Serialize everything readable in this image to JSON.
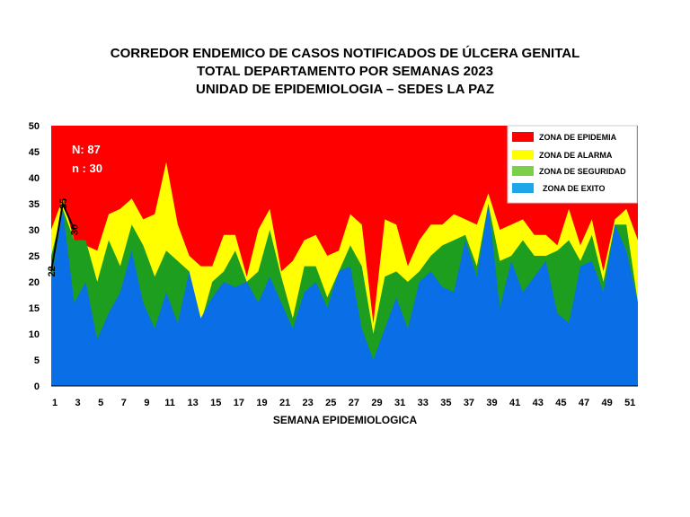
{
  "title": {
    "line1": "CORREDOR  ENDEMICO  DE CASOS NOTIFICADOS  DE ÚLCERA GENITAL",
    "line2": "TOTAL DEPARTAMENTO  POR SEMANAS  2023",
    "line3": "UNIDAD  DE  EPIDEMIOLOGIA  – SEDES LA PAZ"
  },
  "annotations": {
    "N": "N: 87",
    "n": "n : 30"
  },
  "legend": {
    "epidemia": "ZONA DE EPIDEMIA",
    "alarma": "ZONA DE ALARMA",
    "seguridad": "ZONA DE  SEGURIDAD",
    "exito": "ZONA DE  EXITO"
  },
  "colors": {
    "epidemia": "#ff0000",
    "alarma": "#ffff00",
    "seguridad": "#1e9e1e",
    "exito": "#0a6ee6",
    "current_line": "#000000"
  },
  "chart_data": {
    "type": "area",
    "xlabel": "SEMANA EPIDEMIOLOGICA",
    "ylabel": "",
    "ylim": [
      0,
      50
    ],
    "yticks": [
      0,
      5,
      10,
      15,
      20,
      25,
      30,
      35,
      40,
      45,
      50
    ],
    "xticks": [
      1,
      3,
      5,
      7,
      9,
      11,
      13,
      15,
      17,
      19,
      21,
      23,
      25,
      27,
      29,
      31,
      33,
      35,
      37,
      39,
      41,
      43,
      45,
      47,
      49,
      51
    ],
    "x": [
      1,
      2,
      3,
      4,
      5,
      6,
      7,
      8,
      9,
      10,
      11,
      12,
      13,
      14,
      15,
      16,
      17,
      18,
      19,
      20,
      21,
      22,
      23,
      24,
      25,
      26,
      27,
      28,
      29,
      30,
      31,
      32,
      33,
      34,
      35,
      36,
      37,
      38,
      39,
      40,
      41,
      42,
      43,
      44,
      45,
      46,
      47,
      48,
      49,
      50,
      51,
      52
    ],
    "series": [
      {
        "name": "ZONA DE  EXITO",
        "values": [
          20,
          34,
          16,
          20,
          9,
          14,
          18,
          26,
          16,
          11,
          18,
          12,
          22,
          13,
          17,
          20,
          19,
          20,
          16,
          21,
          16,
          11,
          18,
          20,
          15,
          22,
          23,
          11,
          5,
          11,
          17,
          11,
          20,
          22,
          19,
          18,
          28,
          21,
          35,
          15,
          24,
          18,
          21,
          24,
          14,
          12,
          23,
          24,
          18,
          31,
          26,
          16
        ]
      },
      {
        "name": "ZONA DE  SEGURIDAD",
        "values": [
          25,
          34,
          28,
          28,
          20,
          28,
          23,
          31,
          27,
          21,
          26,
          24,
          22,
          12,
          20,
          22,
          26,
          20,
          22,
          30,
          21,
          13,
          23,
          23,
          17,
          22,
          27,
          23,
          10,
          21,
          22,
          20,
          22,
          25,
          27,
          28,
          29,
          23,
          35,
          24,
          25,
          28,
          25,
          25,
          26,
          28,
          24,
          29,
          20,
          31,
          31,
          16
        ]
      },
      {
        "name": "ZONA DE ALARMA",
        "values": [
          30,
          36,
          28,
          27,
          26,
          33,
          34,
          36,
          32,
          33,
          43,
          31,
          25,
          23,
          23,
          29,
          29,
          21,
          30,
          34,
          22,
          24,
          28,
          29,
          25,
          26,
          33,
          31,
          12,
          32,
          31,
          23,
          28,
          31,
          31,
          33,
          32,
          31,
          37,
          30,
          31,
          32,
          29,
          29,
          27,
          34,
          27,
          32,
          22,
          32,
          34,
          28
        ]
      },
      {
        "name": "ZONA DE EPIDEMIA",
        "values": [
          50,
          50,
          50,
          50,
          50,
          50,
          50,
          50,
          50,
          50,
          50,
          50,
          50,
          50,
          50,
          50,
          50,
          50,
          50,
          50,
          50,
          50,
          50,
          50,
          50,
          50,
          50,
          50,
          50,
          50,
          50,
          50,
          50,
          50,
          50,
          50,
          50,
          50,
          50,
          50,
          50,
          50,
          50,
          50,
          50,
          50,
          50,
          50,
          50,
          50,
          50,
          50
        ]
      }
    ],
    "current": {
      "x": [
        1,
        2,
        3
      ],
      "values": [
        22,
        35,
        30
      ],
      "labels": [
        "22",
        "35",
        "30"
      ]
    },
    "legend_position": "top-right",
    "grid": false
  }
}
